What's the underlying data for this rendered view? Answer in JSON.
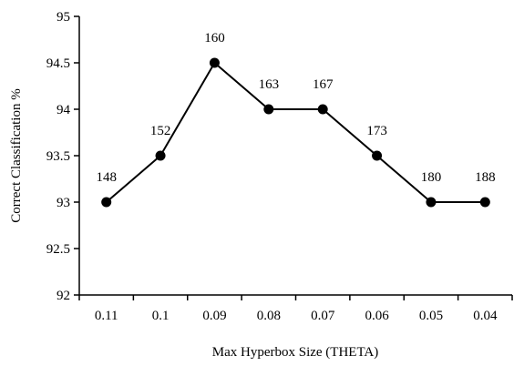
{
  "chart_data": {
    "type": "line",
    "title": "",
    "xlabel": "Max Hyperbox Size (THETA)",
    "ylabel": "Correct Classification %",
    "categories": [
      "0.11",
      "0.1",
      "0.09",
      "0.08",
      "0.07",
      "0.06",
      "0.05",
      "0.04"
    ],
    "series": [
      {
        "values": [
          93,
          93.5,
          94.5,
          94,
          94,
          93.5,
          93,
          93
        ],
        "labels": [
          "148",
          "152",
          "160",
          "163",
          "167",
          "173",
          "180",
          "188"
        ]
      }
    ],
    "ylim": [
      92,
      95
    ],
    "yticks": [
      "92",
      "92.5",
      "93",
      "93.5",
      "94",
      "94.5",
      "95"
    ],
    "grid": false,
    "legend": "none",
    "colors": {
      "line": "#000000",
      "marker": "#000000",
      "axis": "#000000"
    }
  }
}
